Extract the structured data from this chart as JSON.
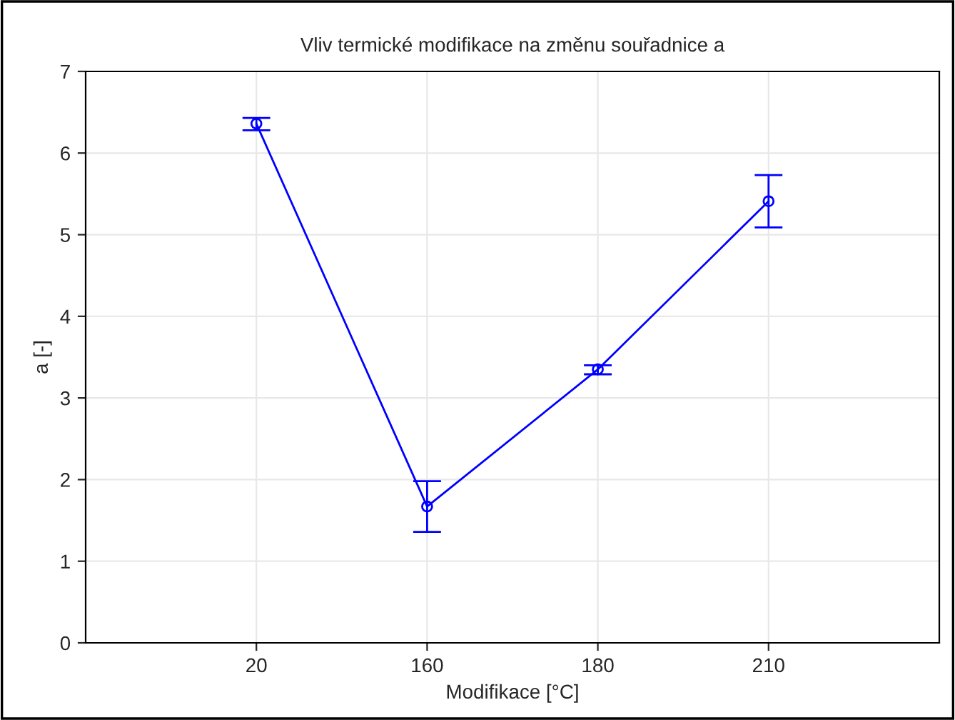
{
  "chart_data": {
    "type": "line",
    "title": "Vliv termické modifikace na změnu souřadnice a",
    "xlabel": "Modifikace [°C]",
    "ylabel": "a [-]",
    "categories": [
      "20",
      "160",
      "180",
      "210"
    ],
    "series": [
      {
        "color": "#0000ff",
        "values": [
          6.36,
          1.67,
          3.35,
          5.41
        ],
        "errors": [
          [
            6.28,
            6.43
          ],
          [
            1.36,
            1.98
          ],
          [
            3.29,
            3.4
          ],
          [
            5.09,
            5.73
          ]
        ]
      }
    ],
    "ylim": [
      0,
      7
    ],
    "yticks": [
      0,
      1,
      2,
      3,
      4,
      5,
      6,
      7
    ],
    "grid": true,
    "marker": "circle",
    "line_style": "solid"
  }
}
